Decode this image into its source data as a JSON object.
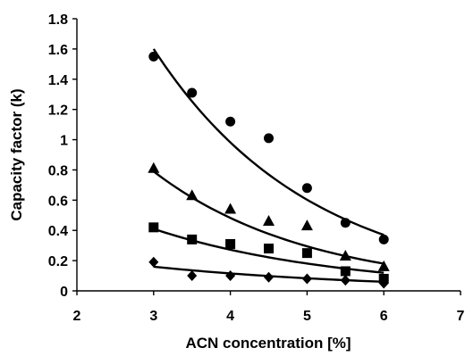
{
  "chart_data": {
    "type": "scatter",
    "title": "",
    "xlabel": "ACN concentration [%]",
    "ylabel": "Capacity factor (k)",
    "xlim": [
      2,
      7
    ],
    "ylim": [
      0,
      1.8
    ],
    "x_ticks": [
      "2",
      "3",
      "4",
      "5",
      "6",
      "7"
    ],
    "y_ticks": [
      "0",
      "0.2",
      "0.4",
      "0.6",
      "0.8",
      "1",
      "1.2",
      "1.4",
      "1.6",
      "1.8"
    ],
    "grid": false,
    "legend": "none",
    "series": [
      {
        "marker": "circle",
        "x": [
          3,
          3.5,
          4,
          4.5,
          5,
          5.5,
          6
        ],
        "y": [
          1.55,
          1.31,
          1.12,
          1.01,
          0.68,
          0.45,
          0.34
        ],
        "fit_x": [
          3,
          6
        ],
        "fit_y": [
          1.6,
          0.37
        ]
      },
      {
        "marker": "triangle",
        "x": [
          3,
          3.5,
          4,
          4.5,
          5,
          5.5,
          6
        ],
        "y": [
          0.81,
          0.63,
          0.54,
          0.46,
          0.43,
          0.23,
          0.16
        ],
        "fit_x": [
          3,
          6
        ],
        "fit_y": [
          0.79,
          0.18
        ]
      },
      {
        "marker": "square",
        "x": [
          3,
          3.5,
          4,
          4.5,
          5,
          5.5,
          6
        ],
        "y": [
          0.42,
          0.34,
          0.31,
          0.28,
          0.25,
          0.13,
          0.08
        ],
        "fit_x": [
          3,
          6
        ],
        "fit_y": [
          0.41,
          0.12
        ]
      },
      {
        "marker": "diamond",
        "x": [
          3,
          3.5,
          4,
          4.5,
          5,
          5.5,
          6
        ],
        "y": [
          0.19,
          0.1,
          0.1,
          0.09,
          0.08,
          0.07,
          0.05
        ],
        "fit_x": [
          3,
          6
        ],
        "fit_y": [
          0.16,
          0.06
        ]
      }
    ]
  }
}
